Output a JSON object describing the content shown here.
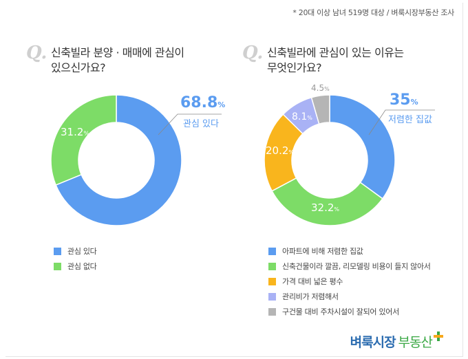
{
  "source_note": "* 20대 이상 남녀 519명 대상 / 벼룩시장부동산 조사",
  "q_mark": "Q.",
  "left_panel": {
    "question_line1": "신축빌라 분양 · 매매에 관심이",
    "question_line2": "있으신가요?",
    "callout_value": "68.8",
    "callout_unit": "%",
    "callout_label": "관심 있다",
    "inner_value": "31.2",
    "inner_unit": "%"
  },
  "right_panel": {
    "question_line1": "신축빌라에 관심이 있는 이유는",
    "question_line2": "무엇인가요?",
    "callout_value": "35",
    "callout_unit": "%",
    "callout_label": "저렴한 집값"
  },
  "logo": {
    "main": "벼룩시장",
    "sub": "부동산"
  },
  "chart_data": [
    {
      "type": "pie",
      "donut": true,
      "slices": [
        {
          "label": "관심 있다",
          "value": 68.8,
          "color": "#5b9cf0"
        },
        {
          "label": "관심 없다",
          "value": 31.2,
          "color": "#7ddc67"
        }
      ]
    },
    {
      "type": "pie",
      "donut": true,
      "slices": [
        {
          "label": "아파트에 비해 저렴한 집값",
          "value": 35,
          "color": "#5b9cf0"
        },
        {
          "label": "신축건물이라 깔끔, 리모델링 비용이 들지 않아서",
          "value": 32.2,
          "color": "#7ddc67"
        },
        {
          "label": "가격 대비 넓은 평수",
          "value": 20.2,
          "color": "#f9b51d"
        },
        {
          "label": "관리비가 저렴해서",
          "value": 8.1,
          "color": "#a9b2f5"
        },
        {
          "label": "구건물 대비 주차시설이 잘되어 있어서",
          "value": 4.5,
          "color": "#b5b5b5"
        }
      ],
      "data_labels": [
        "32.2",
        "20.2",
        "8.1",
        "4.5"
      ],
      "label_unit": "%"
    }
  ]
}
